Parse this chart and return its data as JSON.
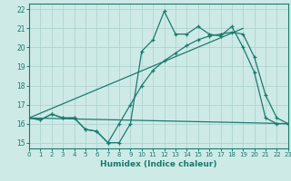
{
  "xlabel": "Humidex (Indice chaleur)",
  "bg_color": "#ceeae6",
  "grid_color": "#b0d4d0",
  "line_color": "#1a7a6e",
  "xlim": [
    0,
    23
  ],
  "ylim": [
    14.7,
    22.3
  ],
  "xticks": [
    0,
    1,
    2,
    3,
    4,
    5,
    6,
    7,
    8,
    9,
    10,
    11,
    12,
    13,
    14,
    15,
    16,
    17,
    18,
    19,
    20,
    21,
    22,
    23
  ],
  "yticks": [
    15,
    16,
    17,
    18,
    19,
    20,
    21,
    22
  ],
  "line1_x": [
    0,
    1,
    2,
    3,
    4,
    5,
    6,
    7,
    8,
    9,
    10,
    11,
    12,
    13,
    14,
    15,
    16,
    17,
    18,
    19,
    20,
    21,
    22,
    23
  ],
  "line1_y": [
    16.3,
    16.2,
    16.5,
    16.3,
    16.3,
    15.7,
    15.6,
    15.0,
    15.0,
    16.0,
    19.8,
    20.4,
    21.9,
    20.7,
    20.7,
    21.1,
    20.7,
    20.6,
    21.1,
    20.0,
    18.7,
    16.3,
    16.0,
    16.0
  ],
  "line2_x": [
    0,
    23
  ],
  "line2_y": [
    16.3,
    16.0
  ],
  "line3_x": [
    0,
    1,
    2,
    3,
    4,
    5,
    6,
    7,
    8,
    9,
    10,
    11,
    12,
    13,
    14,
    15,
    16,
    17,
    18,
    19,
    20,
    21,
    22,
    23
  ],
  "line3_y": [
    16.3,
    16.2,
    16.5,
    16.3,
    16.3,
    15.7,
    15.6,
    15.0,
    16.0,
    17.0,
    18.0,
    18.8,
    19.3,
    19.7,
    20.1,
    20.4,
    20.6,
    20.7,
    20.8,
    20.7,
    19.5,
    17.5,
    16.3,
    16.0
  ],
  "line4_x": [
    0,
    19
  ],
  "line4_y": [
    16.3,
    21.0
  ]
}
